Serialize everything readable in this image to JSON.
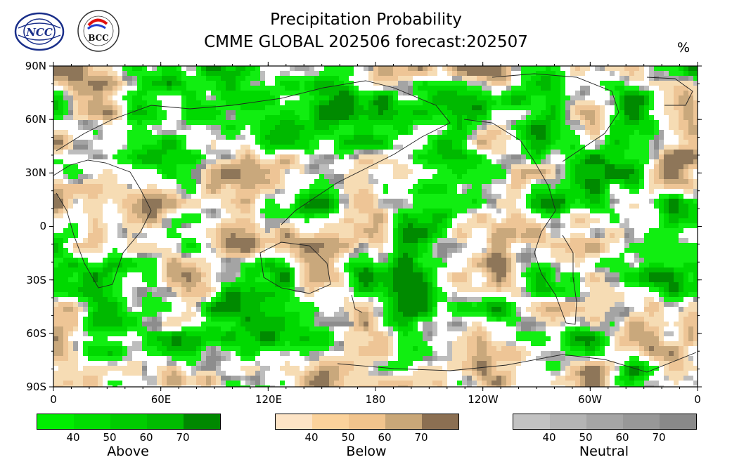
{
  "title": {
    "line1": "Precipitation Probability",
    "line2": "CMME GLOBAL 202506 forecast:202507"
  },
  "unit": "%",
  "logos": {
    "left_text": "NCC",
    "right_text": "BCC"
  },
  "axes": {
    "y_ticks": [
      "90N",
      "60N",
      "30N",
      "0",
      "30S",
      "60S",
      "90S"
    ],
    "x_ticks": [
      "0",
      "60E",
      "120E",
      "180",
      "120W",
      "60W",
      "0"
    ]
  },
  "colorbars": [
    {
      "name": "Above",
      "ticks": [
        "40",
        "50",
        "60",
        "70"
      ],
      "colors": [
        "#00ee00",
        "#00dd00",
        "#00cc00",
        "#00bb00",
        "#008800"
      ]
    },
    {
      "name": "Below",
      "ticks": [
        "40",
        "50",
        "60",
        "70"
      ],
      "colors": [
        "#fde4c6",
        "#fbd29b",
        "#f1c48d",
        "#c9a778",
        "#8b6f52"
      ]
    },
    {
      "name": "Neutral",
      "ticks": [
        "40",
        "50",
        "60",
        "70"
      ],
      "colors": [
        "#c2c2c2",
        "#b4b4b4",
        "#a5a5a5",
        "#989898",
        "#898989"
      ]
    }
  ],
  "palette": {
    "above": [
      "#11ee11",
      "#00d900",
      "#00b900",
      "#008a00"
    ],
    "below": [
      "#f6dcb4",
      "#eec596",
      "#c9a87c",
      "#8e7659"
    ],
    "neutral": [
      "#bdbdbd",
      "#a4a4a4",
      "#8d8d8d"
    ]
  }
}
